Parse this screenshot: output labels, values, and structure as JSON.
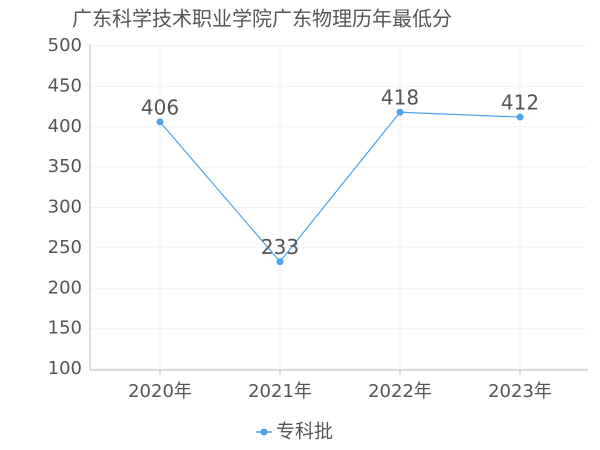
{
  "chart_data": {
    "type": "line",
    "title": "广东科学技术职业学院广东物理历年最低分",
    "categories": [
      "2020年",
      "2021年",
      "2022年",
      "2023年"
    ],
    "series": [
      {
        "name": "专科批",
        "color": "#4ea3ee",
        "values": [
          406,
          233,
          418,
          412
        ]
      }
    ],
    "ylim": [
      100,
      500
    ],
    "yticks": [
      100,
      150,
      200,
      250,
      300,
      350,
      400,
      450,
      500
    ],
    "grid": true,
    "legend": "bottom"
  }
}
